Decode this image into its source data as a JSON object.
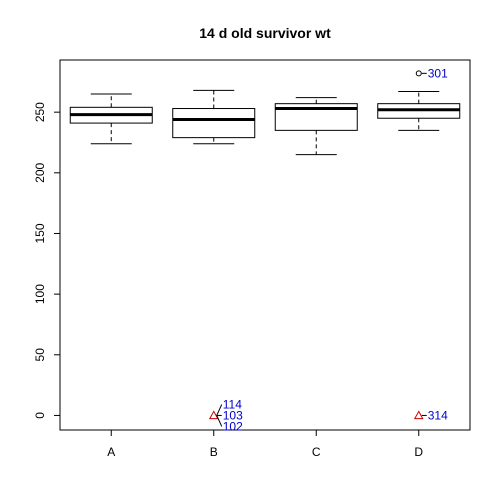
{
  "chart_data": {
    "type": "box",
    "title": "14 d old survivor wt",
    "xlabel": "",
    "ylabel": "",
    "categories": [
      "A",
      "B",
      "C",
      "D"
    ],
    "ylim": [
      -12,
      293
    ],
    "y_ticks": [
      0,
      50,
      100,
      150,
      200,
      250
    ],
    "y_tick_labels": [
      "0",
      "50",
      "100",
      "150",
      "200",
      "250"
    ],
    "boxes": [
      {
        "category": "A",
        "whisker_low": 224,
        "q1": 241,
        "median": 248,
        "q3": 254,
        "whisker_high": 265
      },
      {
        "category": "B",
        "whisker_low": 224,
        "q1": 229,
        "median": 244,
        "q3": 253,
        "whisker_high": 268
      },
      {
        "category": "C",
        "whisker_low": 215,
        "q1": 235,
        "median": 253,
        "q3": 257,
        "whisker_high": 262
      },
      {
        "category": "D",
        "whisker_low": 235,
        "q1": 245,
        "median": 252,
        "q3": 257,
        "whisker_high": 267
      }
    ],
    "outliers": [
      {
        "category": "B",
        "y": 0,
        "marker": "triangle",
        "color": "#cc0000",
        "labels": [
          "114",
          "103",
          "102"
        ]
      },
      {
        "category": "D",
        "y": 0,
        "marker": "triangle",
        "color": "#cc0000",
        "labels": [
          "314"
        ]
      },
      {
        "category": "D",
        "y": 282,
        "marker": "circle",
        "color": "#000000",
        "labels": [
          "301"
        ]
      }
    ],
    "label_color": "#0000cc",
    "grid": false
  }
}
